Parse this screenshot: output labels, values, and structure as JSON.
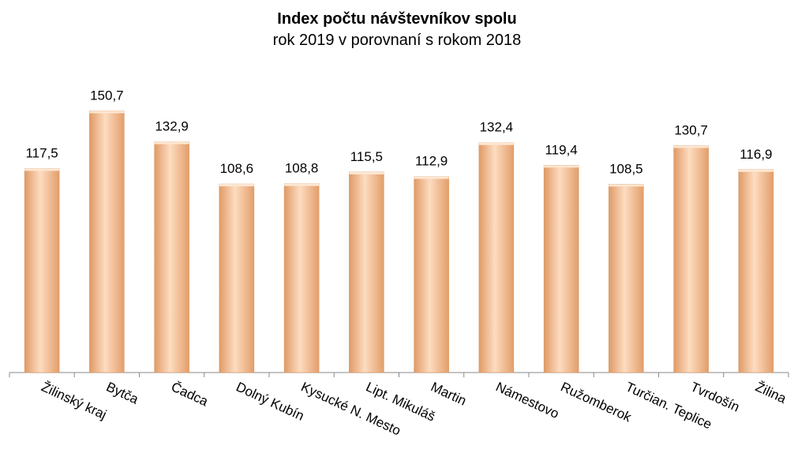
{
  "chart_data": {
    "type": "bar",
    "title": "Index počtu návštevníkov spolu",
    "subtitle": "rok 2019 v porovnaní s rokom 2018",
    "categories": [
      "Žilinský kraj",
      "Bytča",
      "Čadca",
      "Dolný Kubín",
      "Kysucké N. Mesto",
      "Lipt. Mikuláš",
      "Martin",
      "Námestovo",
      "Ružomberok",
      "Turčian. Teplice",
      "Tvrdošín",
      "Žilina"
    ],
    "values": [
      117.5,
      150.7,
      132.9,
      108.6,
      108.8,
      115.5,
      112.9,
      132.4,
      119.4,
      108.5,
      130.7,
      116.9
    ],
    "value_labels": [
      "117,5",
      "150,7",
      "132,9",
      "108,6",
      "108,8",
      "115,5",
      "112,9",
      "132,4",
      "119,4",
      "108,5",
      "130,7",
      "116,9"
    ],
    "color": "#eaa978",
    "ylim": [
      0,
      160
    ]
  }
}
